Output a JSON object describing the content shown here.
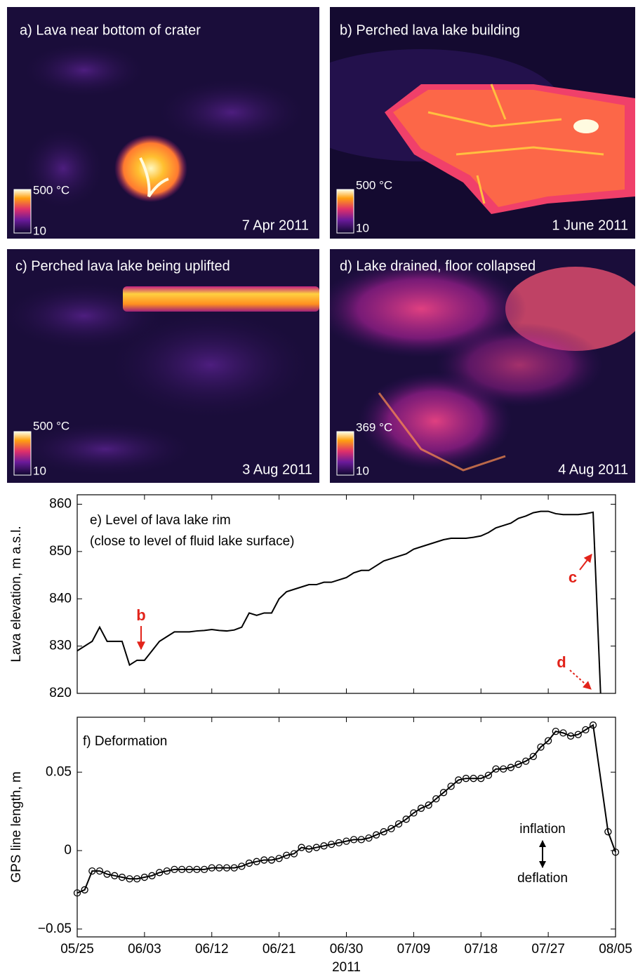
{
  "images": [
    {
      "label": "a)  Lava near bottom of crater",
      "date": "7 Apr 2011",
      "scale_max": "500 °C",
      "scale_min": "10"
    },
    {
      "label": "b)  Perched lava lake building",
      "date": "1 June 2011",
      "scale_max": "500 °C",
      "scale_min": "10"
    },
    {
      "label": "c)  Perched lava lake being uplifted",
      "date": "3 Aug 2011",
      "scale_max": "500 °C",
      "scale_min": "10"
    },
    {
      "label": "d)  Lake drained, floor collapsed",
      "date": "4 Aug 2011",
      "scale_max": "369 °C",
      "scale_min": "10"
    }
  ],
  "chart_data": [
    {
      "type": "line",
      "ylabel": "Lava elevation, m a.s.l.",
      "color": "#000000",
      "annotations": [
        "e) Level of lava lake rim",
        "(close to level of fluid lake surface)",
        "b",
        "c",
        "d"
      ],
      "x": [
        "2011-05-25",
        "2011-05-26",
        "2011-05-27",
        "2011-05-28",
        "2011-05-29",
        "2011-05-30",
        "2011-05-31",
        "2011-06-01",
        "2011-06-02",
        "2011-06-03",
        "2011-06-04",
        "2011-06-05",
        "2011-06-06",
        "2011-06-07",
        "2011-06-08",
        "2011-06-09",
        "2011-06-10",
        "2011-06-11",
        "2011-06-12",
        "2011-06-13",
        "2011-06-14",
        "2011-06-15",
        "2011-06-16",
        "2011-06-17",
        "2011-06-18",
        "2011-06-19",
        "2011-06-20",
        "2011-06-21",
        "2011-06-22",
        "2011-06-23",
        "2011-06-24",
        "2011-06-25",
        "2011-06-26",
        "2011-06-27",
        "2011-06-28",
        "2011-06-29",
        "2011-06-30",
        "2011-07-01",
        "2011-07-02",
        "2011-07-03",
        "2011-07-04",
        "2011-07-05",
        "2011-07-06",
        "2011-07-07",
        "2011-07-08",
        "2011-07-09",
        "2011-07-10",
        "2011-07-11",
        "2011-07-12",
        "2011-07-13",
        "2011-07-14",
        "2011-07-15",
        "2011-07-16",
        "2011-07-17",
        "2011-07-18",
        "2011-07-19",
        "2011-07-20",
        "2011-07-21",
        "2011-07-22",
        "2011-07-23",
        "2011-07-24",
        "2011-07-25",
        "2011-07-26",
        "2011-07-27",
        "2011-07-28",
        "2011-07-29",
        "2011-07-30",
        "2011-07-31",
        "2011-08-01",
        "2011-08-02",
        "2011-08-03"
      ],
      "values": [
        829,
        830,
        831,
        834,
        831,
        831,
        831,
        826,
        827,
        827,
        829,
        831,
        832,
        833,
        833,
        833,
        833.2,
        833.3,
        833.5,
        833.3,
        833.2,
        833.4,
        834,
        837,
        836.5,
        837,
        837,
        840,
        841.5,
        842,
        842.5,
        843,
        843,
        843.5,
        843.5,
        844,
        844.5,
        845.5,
        846,
        846,
        847,
        848,
        848.5,
        849,
        849.5,
        850.5,
        851,
        851.5,
        852,
        852.5,
        852.8,
        852.8,
        852.8,
        853,
        853.3,
        854,
        855,
        855.5,
        856,
        857,
        857.5,
        858.2,
        858.5,
        858.5,
        858,
        857.8,
        857.8,
        857.8,
        858,
        858.3,
        820
      ],
      "xlim": [
        "2011-05-25",
        "2011-08-05"
      ],
      "xticks": [
        "2011-05-25",
        "2011-06-03",
        "2011-06-12",
        "2011-06-21",
        "2011-06-30",
        "2011-07-09",
        "2011-07-18",
        "2011-07-27",
        "2011-08-05"
      ],
      "ylim": [
        820,
        862
      ],
      "yticks": [
        820,
        830,
        840,
        850,
        860
      ]
    },
    {
      "type": "line-markers",
      "ylabel": "GPS line length, m",
      "xlabel": "2011",
      "color": "#000000",
      "annotations": [
        "f) Deformation",
        "inflation",
        "deflation"
      ],
      "x": [
        "2011-05-25",
        "2011-05-26",
        "2011-05-27",
        "2011-05-28",
        "2011-05-29",
        "2011-05-30",
        "2011-05-31",
        "2011-06-01",
        "2011-06-02",
        "2011-06-03",
        "2011-06-04",
        "2011-06-05",
        "2011-06-06",
        "2011-06-07",
        "2011-06-08",
        "2011-06-09",
        "2011-06-10",
        "2011-06-11",
        "2011-06-12",
        "2011-06-13",
        "2011-06-14",
        "2011-06-15",
        "2011-06-16",
        "2011-06-17",
        "2011-06-18",
        "2011-06-19",
        "2011-06-20",
        "2011-06-21",
        "2011-06-22",
        "2011-06-23",
        "2011-06-24",
        "2011-06-25",
        "2011-06-26",
        "2011-06-27",
        "2011-06-28",
        "2011-06-29",
        "2011-06-30",
        "2011-07-01",
        "2011-07-02",
        "2011-07-03",
        "2011-07-04",
        "2011-07-05",
        "2011-07-06",
        "2011-07-07",
        "2011-07-08",
        "2011-07-09",
        "2011-07-10",
        "2011-07-11",
        "2011-07-12",
        "2011-07-13",
        "2011-07-14",
        "2011-07-15",
        "2011-07-16",
        "2011-07-17",
        "2011-07-18",
        "2011-07-19",
        "2011-07-20",
        "2011-07-21",
        "2011-07-22",
        "2011-07-23",
        "2011-07-24",
        "2011-07-25",
        "2011-07-26",
        "2011-07-27",
        "2011-07-28",
        "2011-07-29",
        "2011-07-30",
        "2011-07-31",
        "2011-08-01",
        "2011-08-02",
        "2011-08-04",
        "2011-08-05"
      ],
      "values": [
        -0.027,
        -0.025,
        -0.013,
        -0.013,
        -0.015,
        -0.016,
        -0.017,
        -0.018,
        -0.018,
        -0.017,
        -0.016,
        -0.014,
        -0.013,
        -0.012,
        -0.012,
        -0.012,
        -0.012,
        -0.012,
        -0.011,
        -0.011,
        -0.011,
        -0.011,
        -0.01,
        -0.008,
        -0.007,
        -0.006,
        -0.006,
        -0.005,
        -0.003,
        -0.002,
        0.002,
        0.001,
        0.002,
        0.003,
        0.004,
        0.005,
        0.006,
        0.007,
        0.007,
        0.008,
        0.01,
        0.012,
        0.014,
        0.017,
        0.02,
        0.024,
        0.027,
        0.029,
        0.033,
        0.037,
        0.041,
        0.045,
        0.046,
        0.046,
        0.046,
        0.048,
        0.052,
        0.052,
        0.053,
        0.055,
        0.057,
        0.06,
        0.066,
        0.07,
        0.076,
        0.075,
        0.073,
        0.074,
        0.077,
        0.08,
        0.012,
        -0.001
      ],
      "xlim": [
        "2011-05-25",
        "2011-08-05"
      ],
      "xticks": [
        {
          "value": "2011-05-25",
          "label": "05/25"
        },
        {
          "value": "2011-06-03",
          "label": "06/03"
        },
        {
          "value": "2011-06-12",
          "label": "06/12"
        },
        {
          "value": "2011-06-21",
          "label": "06/21"
        },
        {
          "value": "2011-06-30",
          "label": "06/30"
        },
        {
          "value": "2011-07-09",
          "label": "07/09"
        },
        {
          "value": "2011-07-18",
          "label": "07/18"
        },
        {
          "value": "2011-07-27",
          "label": "07/27"
        },
        {
          "value": "2011-08-05",
          "label": "08/05"
        }
      ],
      "ylim": [
        -0.055,
        0.085
      ],
      "yticks": [
        {
          "value": -0.05,
          "label": "−0.05"
        },
        0,
        0.05
      ]
    }
  ]
}
